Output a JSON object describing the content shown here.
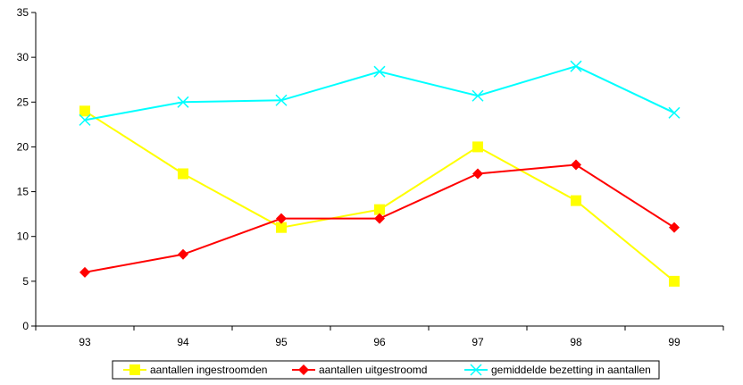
{
  "chart_data": {
    "type": "line",
    "categories": [
      "93",
      "94",
      "95",
      "96",
      "97",
      "98",
      "99"
    ],
    "ylim": [
      0,
      35
    ],
    "yticks": [
      0,
      5,
      10,
      15,
      20,
      25,
      30,
      35
    ],
    "grid": false,
    "legend_position": "bottom",
    "series": [
      {
        "name": "aantallen ingestroomden",
        "color": "#ffff00",
        "marker": "square",
        "values": [
          24,
          17,
          11,
          13,
          20,
          14,
          5
        ]
      },
      {
        "name": "aantallen uitgestroomd",
        "color": "#ff0000",
        "marker": "diamond",
        "values": [
          6,
          8,
          12,
          12,
          17,
          18,
          11
        ]
      },
      {
        "name": "gemiddelde bezetting in aantallen",
        "color": "#00ffff",
        "marker": "x",
        "values": [
          23,
          25,
          25.2,
          28.4,
          25.7,
          29,
          23.8
        ]
      }
    ]
  }
}
